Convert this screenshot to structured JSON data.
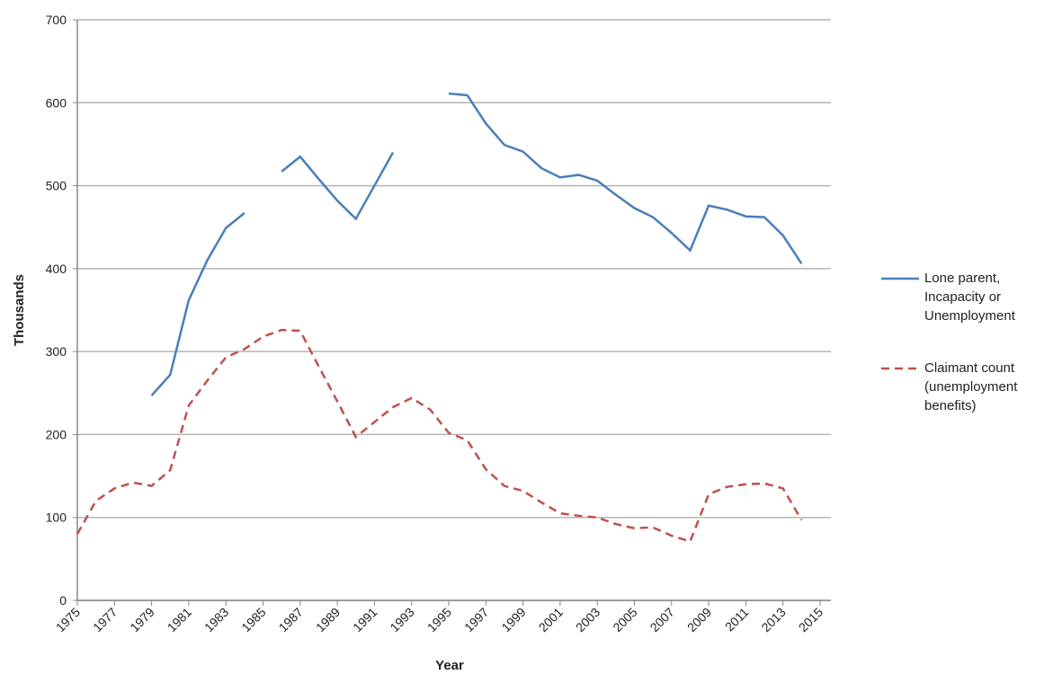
{
  "chart_data": {
    "type": "line",
    "x_label": "Year",
    "y_label": "Thousands",
    "x": [
      1975,
      1976,
      1977,
      1978,
      1979,
      1980,
      1981,
      1982,
      1983,
      1984,
      1985,
      1986,
      1987,
      1988,
      1989,
      1990,
      1991,
      1992,
      1993,
      1994,
      1995,
      1996,
      1997,
      1998,
      1999,
      2000,
      2001,
      2002,
      2003,
      2004,
      2005,
      2006,
      2007,
      2008,
      2009,
      2010,
      2011,
      2012,
      2013,
      2014
    ],
    "series": [
      {
        "name": "Lone parent, Incapacity or Unemployment",
        "color": "#4a7ebb",
        "style": "solid",
        "values": [
          null,
          null,
          null,
          null,
          247,
          272,
          362,
          410,
          449,
          467,
          null,
          517,
          535,
          508,
          482,
          460,
          500,
          540,
          null,
          null,
          611,
          609,
          575,
          549,
          541,
          521,
          510,
          513,
          506,
          489,
          473,
          462,
          443,
          422,
          476,
          471,
          463,
          462,
          440,
          406
        ]
      },
      {
        "name": "Claimant count (unemployment benefits)",
        "color": "#c0504d",
        "style": "dashed",
        "values": [
          80,
          120,
          135,
          142,
          138,
          157,
          235,
          265,
          293,
          303,
          318,
          326,
          325,
          282,
          240,
          197,
          215,
          233,
          244,
          230,
          202,
          193,
          158,
          138,
          132,
          118,
          105,
          102,
          100,
          92,
          87,
          88,
          78,
          71,
          128,
          137,
          140,
          141,
          135,
          97
        ]
      }
    ],
    "xlim": [
      1975,
      2015
    ],
    "xticks": [
      1975,
      1977,
      1979,
      1981,
      1983,
      1985,
      1987,
      1989,
      1991,
      1993,
      1995,
      1997,
      1999,
      2001,
      2003,
      2005,
      2007,
      2009,
      2011,
      2013,
      2015
    ],
    "ylim": [
      0,
      700
    ],
    "yticks": [
      0,
      100,
      200,
      300,
      400,
      500,
      600,
      700
    ],
    "grid": true,
    "legend": "right"
  }
}
